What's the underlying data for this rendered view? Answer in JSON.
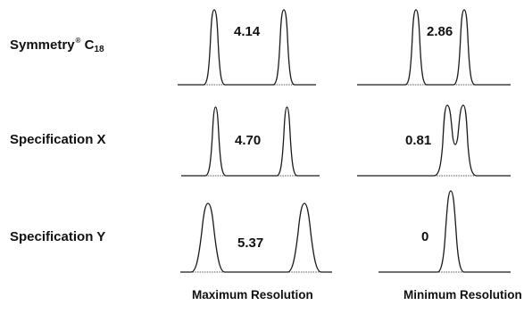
{
  "rows": [
    {
      "name_main": "Symmetry",
      "name_reg": "®",
      "name_c": " C",
      "name_sub": "18"
    },
    {
      "name_main": "Specification X"
    },
    {
      "name_main": "Specification Y"
    }
  ],
  "values": {
    "r0_max": "4.14",
    "r0_min": "2.86",
    "r1_max": "4.70",
    "r1_min": "0.81",
    "r2_max": "5.37",
    "r2_min": "0"
  },
  "captions": {
    "max": "Maximum Resolution",
    "min": "Minimum Resolution"
  }
}
